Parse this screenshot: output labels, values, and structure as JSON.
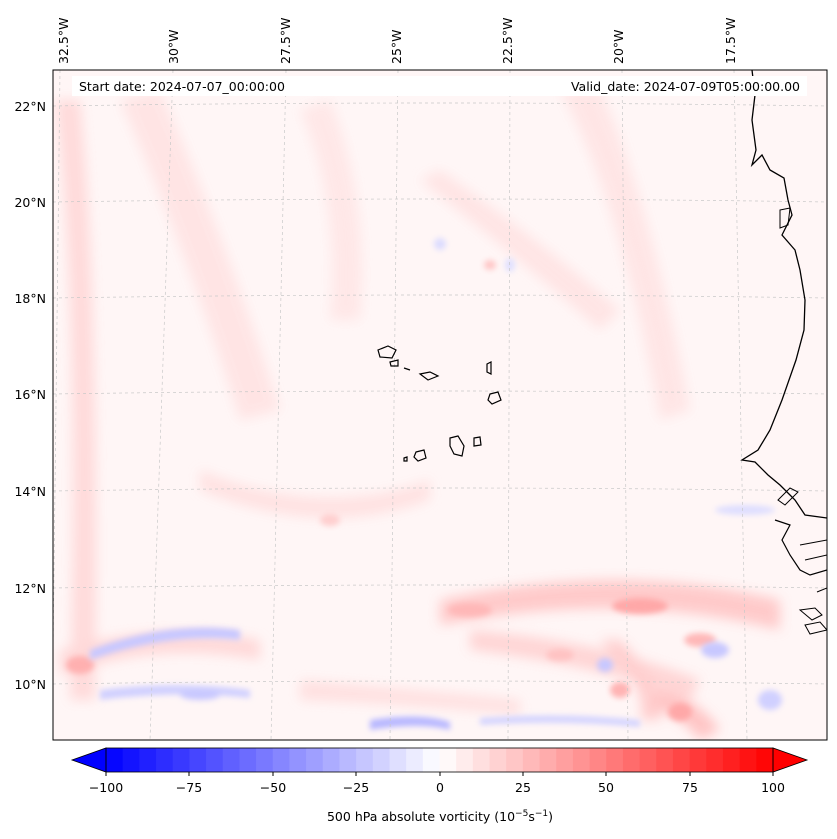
{
  "map": {
    "start_date": "Start date: 2024-07-07_00:00:00",
    "valid_date": "Valid_date: 2024-07-09T05:00:00.00",
    "lon_labels": [
      "32.5°W",
      "30°W",
      "27.5°W",
      "25°W",
      "22.5°W",
      "20°W",
      "17.5°W"
    ],
    "lat_labels": [
      "22°N",
      "20°N",
      "18°N",
      "16°N",
      "14°N",
      "12°N",
      "10°N"
    ],
    "field": "500 hPa absolute vorticity",
    "colormap": "bwr"
  },
  "colorbar": {
    "ticks": [
      "−100",
      "−75",
      "−50",
      "−25",
      "0",
      "25",
      "50",
      "75",
      "100"
    ],
    "label_main": "500 hPa absolute vorticity (10",
    "label_exp1": "−5",
    "label_mid": "s",
    "label_exp2": "−1",
    "label_end": ")",
    "range": [
      -100,
      100
    ],
    "levels": 41,
    "extend": "both"
  }
}
